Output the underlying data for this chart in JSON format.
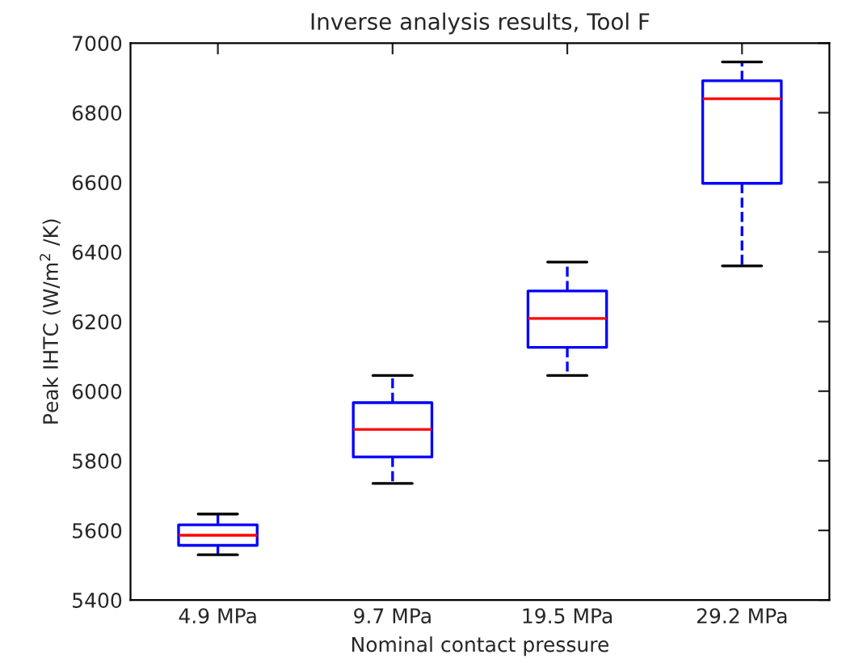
{
  "chart_data": {
    "type": "box",
    "title": "Inverse analysis results, Tool F",
    "xlabel": "Nominal contact pressure",
    "ylabel": "Peak IHTC (W/m$^{2}$ /K)",
    "categories": [
      "4.9 MPa",
      "9.7 MPa",
      "19.5 MPa",
      "29.2 MPa"
    ],
    "boxes": [
      {
        "low": 5530,
        "q1": 5557,
        "median": 5586,
        "q3": 5616,
        "high": 5647
      },
      {
        "low": 5735,
        "q1": 5811,
        "median": 5890,
        "q3": 5967,
        "high": 6045
      },
      {
        "low": 6045,
        "q1": 6126,
        "median": 6209,
        "q3": 6288,
        "high": 6371
      },
      {
        "low": 6360,
        "q1": 6597,
        "median": 6840,
        "q3": 6892,
        "high": 6946
      }
    ],
    "color": "#0000ff",
    "line_style": "dashed",
    "ylim": [
      5400,
      7000
    ],
    "yticks": [
      5400,
      5600,
      5800,
      6000,
      6200,
      6400,
      6600,
      6800,
      7000
    ],
    "grid": false
  }
}
